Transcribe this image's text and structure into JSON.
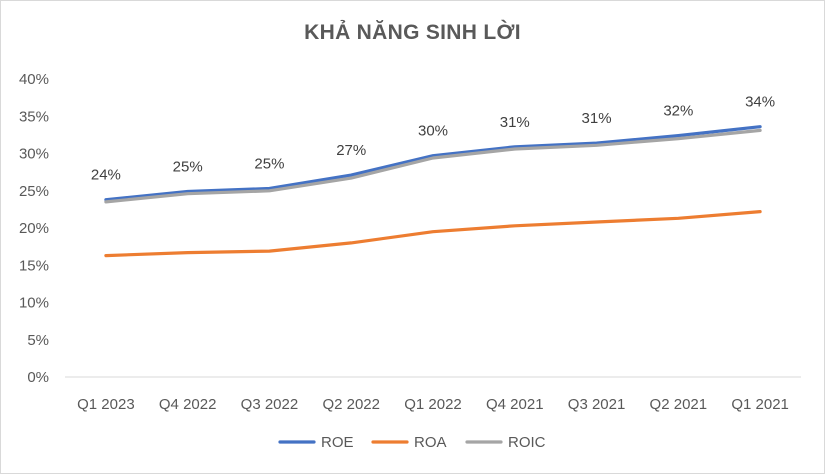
{
  "chart_data": {
    "type": "line",
    "title": "KHẢ NĂNG SINH LỜI",
    "categories": [
      "Q1 2023",
      "Q4 2022",
      "Q3 2022",
      "Q2 2022",
      "Q1 2022",
      "Q4 2021",
      "Q3 2021",
      "Q2 2021",
      "Q1 2021"
    ],
    "ylim": [
      0,
      40
    ],
    "yticks": [
      "0%",
      "5%",
      "10%",
      "15%",
      "20%",
      "25%",
      "30%",
      "35%",
      "40%"
    ],
    "ytick_values": [
      0,
      5,
      10,
      15,
      20,
      25,
      30,
      35,
      40
    ],
    "grid": false,
    "legend": "bottom",
    "series": [
      {
        "name": "ROE",
        "color": "#4472c4",
        "values": [
          23.8,
          24.9,
          25.3,
          27.1,
          29.7,
          30.9,
          31.4,
          32.4,
          33.6
        ],
        "labels": [
          "24%",
          "25%",
          "25%",
          "27%",
          "30%",
          "31%",
          "31%",
          "32%",
          "34%"
        ]
      },
      {
        "name": "ROA",
        "color": "#ed7d31",
        "values": [
          16.3,
          16.7,
          16.9,
          18.0,
          19.5,
          20.3,
          20.8,
          21.3,
          22.2
        ]
      },
      {
        "name": "ROIC",
        "color": "#a5a5a5",
        "values": [
          23.5,
          24.6,
          25.0,
          26.7,
          29.4,
          30.6,
          31.1,
          32.0,
          33.1
        ]
      }
    ]
  }
}
